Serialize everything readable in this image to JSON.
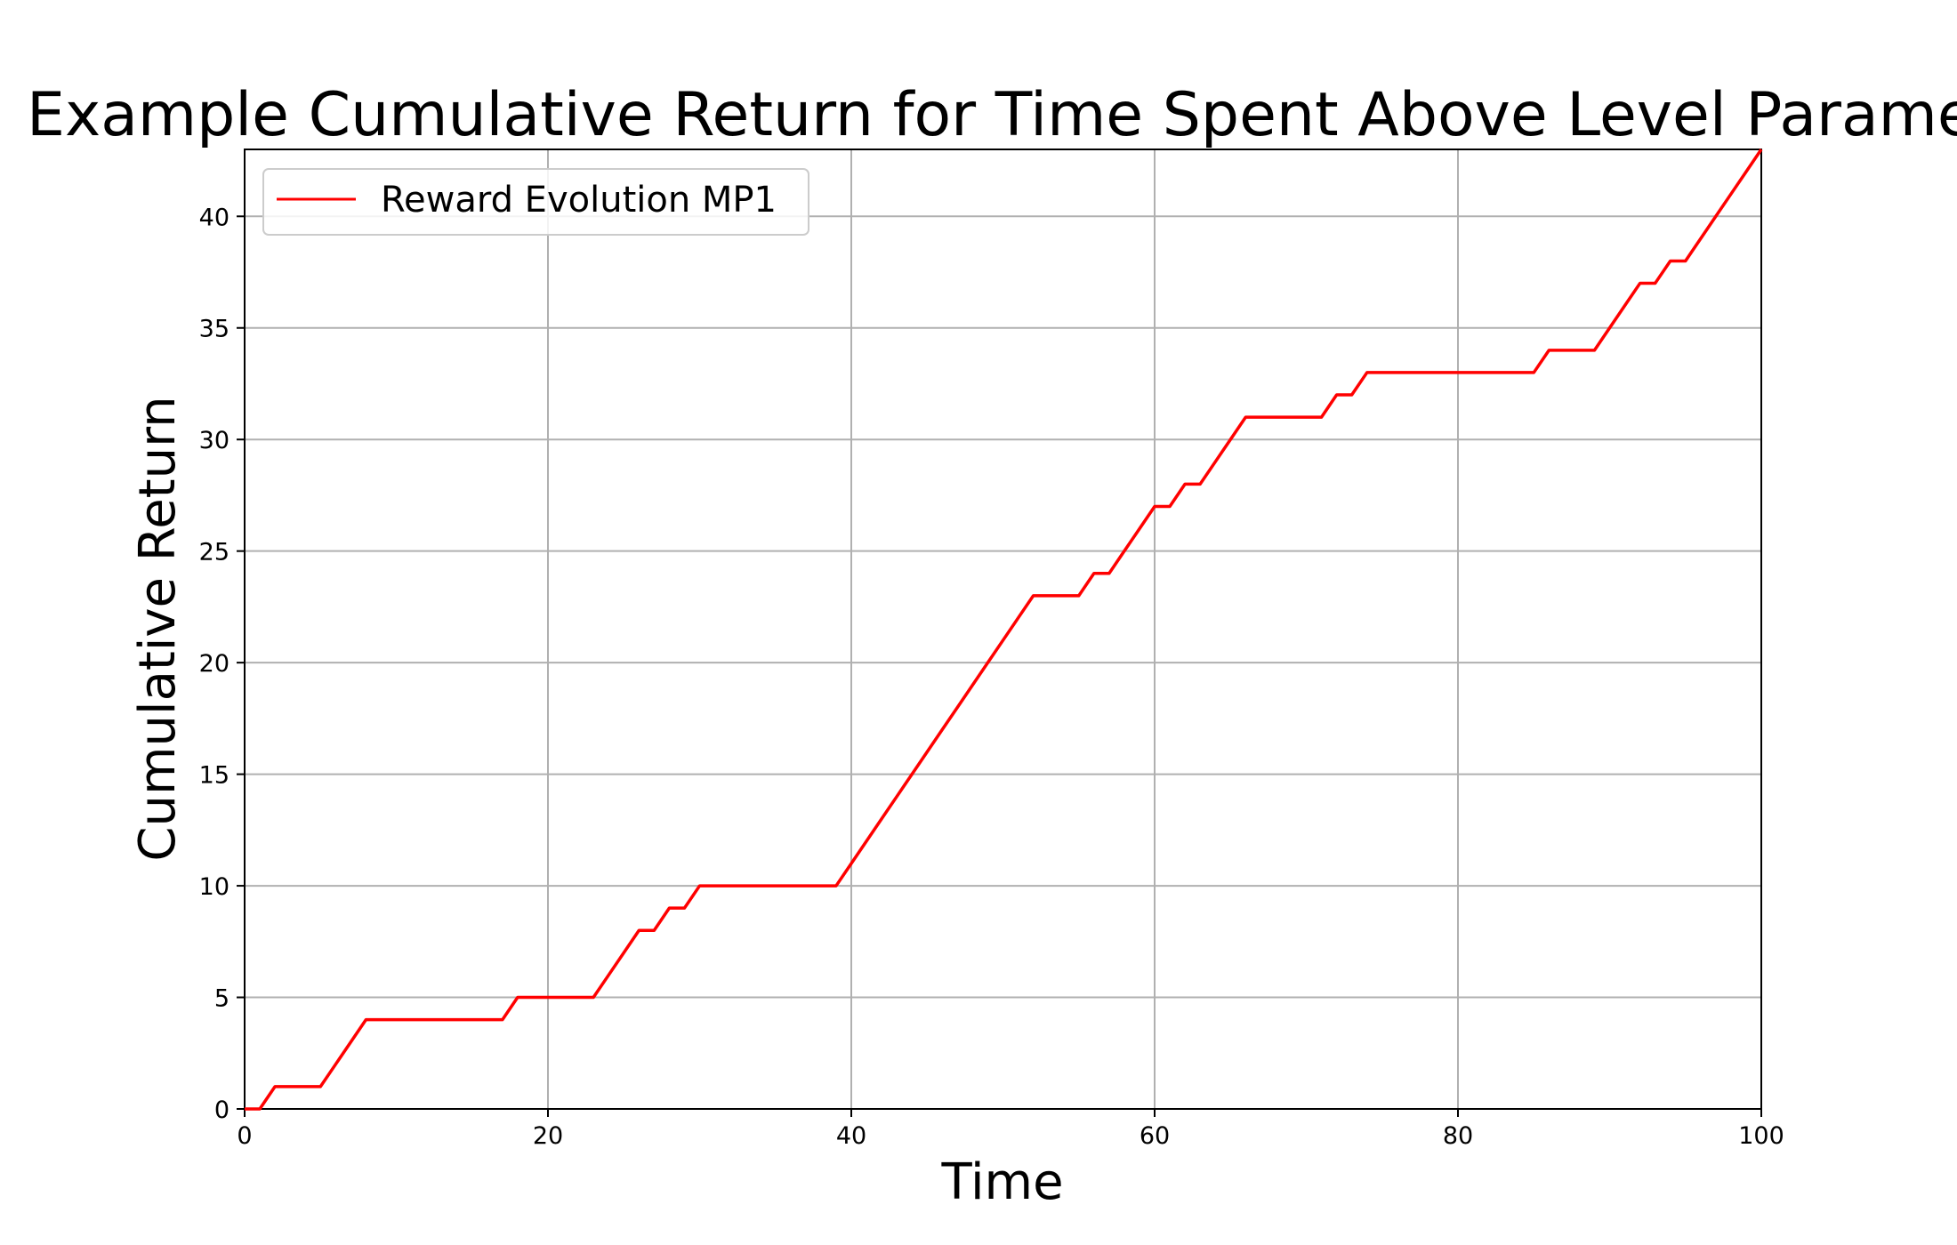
{
  "chart_data": {
    "type": "line",
    "title": "Example Cumulative Return for Time Spent Above Level Parameter",
    "xlabel": "Time",
    "ylabel": "Cumulative Return",
    "xlim": [
      0,
      100
    ],
    "ylim": [
      0,
      43
    ],
    "x_ticks": [
      0,
      20,
      40,
      60,
      80,
      100
    ],
    "y_ticks": [
      0,
      5,
      10,
      15,
      20,
      25,
      30,
      35,
      40
    ],
    "grid": true,
    "legend_position": "upper-left",
    "series": [
      {
        "name": "Reward Evolution MP1",
        "color": "#ff0000",
        "x": [
          0,
          1,
          2,
          3,
          4,
          5,
          6,
          7,
          8,
          9,
          10,
          11,
          12,
          13,
          14,
          15,
          16,
          17,
          18,
          19,
          20,
          21,
          22,
          23,
          24,
          25,
          26,
          27,
          28,
          29,
          30,
          31,
          32,
          33,
          34,
          35,
          36,
          37,
          38,
          39,
          40,
          41,
          42,
          43,
          44,
          45,
          46,
          47,
          48,
          49,
          50,
          51,
          52,
          53,
          54,
          55,
          56,
          57,
          58,
          59,
          60,
          61,
          62,
          63,
          64,
          65,
          66,
          67,
          68,
          69,
          70,
          71,
          72,
          73,
          74,
          75,
          76,
          77,
          78,
          79,
          80,
          81,
          82,
          83,
          84,
          85,
          86,
          87,
          88,
          89,
          90,
          91,
          92,
          93,
          94,
          95,
          96,
          97,
          98,
          99,
          100
        ],
        "y": [
          0,
          0,
          1,
          1,
          1,
          1,
          2,
          3,
          4,
          4,
          4,
          4,
          4,
          4,
          4,
          4,
          4,
          4,
          5,
          5,
          5,
          5,
          5,
          5,
          6,
          7,
          8,
          8,
          9,
          9,
          10,
          10,
          10,
          10,
          10,
          10,
          10,
          10,
          10,
          10,
          11,
          12,
          13,
          14,
          15,
          16,
          17,
          18,
          19,
          20,
          21,
          22,
          23,
          23,
          23,
          23,
          24,
          24,
          25,
          26,
          27,
          27,
          28,
          28,
          29,
          30,
          31,
          31,
          31,
          31,
          31,
          31,
          32,
          32,
          33,
          33,
          33,
          33,
          33,
          33,
          33,
          33,
          33,
          33,
          33,
          33,
          34,
          34,
          34,
          34,
          35,
          36,
          37,
          37,
          38,
          38,
          39,
          40,
          41,
          42,
          43
        ]
      }
    ]
  }
}
